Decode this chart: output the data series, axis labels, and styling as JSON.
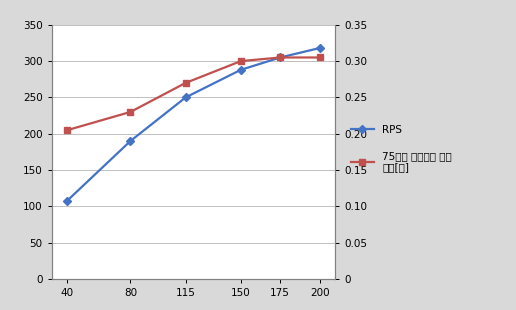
{
  "x": [
    40,
    80,
    115,
    150,
    175,
    200
  ],
  "rps": [
    108,
    190,
    250,
    288,
    305,
    318
  ],
  "latency": [
    0.205,
    0.23,
    0.27,
    0.3,
    0.305,
    0.305
  ],
  "left_ylim": [
    0,
    350
  ],
  "left_yticks": [
    0,
    50,
    100,
    150,
    200,
    250,
    300,
    350
  ],
  "right_ylim": [
    0,
    0.35
  ],
  "right_yticks": [
    0,
    0.05,
    0.1,
    0.15,
    0.2,
    0.25,
    0.3,
    0.35
  ],
  "rps_color": "#4472C4",
  "latency_color": "#C0504D",
  "bg_color": "#D9D9D9",
  "plot_bg_color": "#FFFFFF",
  "rps_label": "RPS",
  "latency_label": "75번째 백분위수 대기\n시간[초]",
  "xlabel_vals": [
    40,
    80,
    115,
    150,
    175,
    200
  ],
  "grid_color": "#C0C0C0",
  "spine_color": "#808080"
}
